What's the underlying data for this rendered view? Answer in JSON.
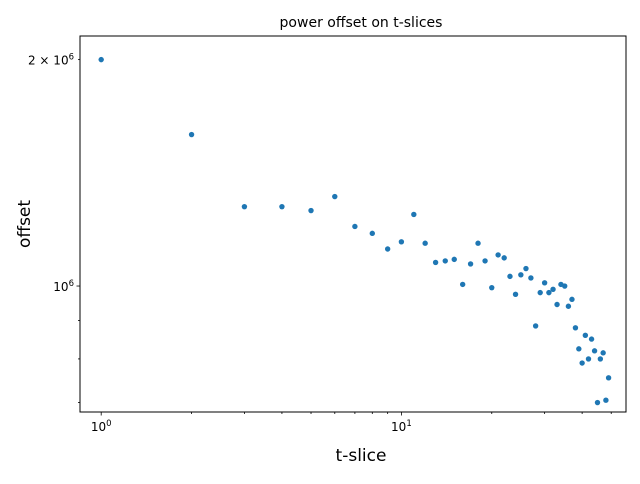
{
  "chart_data": {
    "type": "scatter",
    "title": "power offset on t-slices",
    "xlabel": "t-slice",
    "ylabel": "offset",
    "xscale": "log",
    "yscale": "log",
    "xlim": [
      0.85,
      56
    ],
    "ylim": [
      680000,
      2150000
    ],
    "grid": false,
    "x_tick_labels": [
      {
        "value": 1,
        "base": "10",
        "exp": "0"
      },
      {
        "value": 10,
        "base": "10",
        "exp": "1"
      }
    ],
    "y_tick_labels": [
      {
        "value": 1000000,
        "base": "10",
        "exp": "6",
        "prefix": ""
      },
      {
        "value": 2000000,
        "base": "10",
        "exp": "6",
        "prefix": "2 × "
      }
    ],
    "marker_color": "#1f77b4",
    "points": [
      [
        1,
        2000000
      ],
      [
        2,
        1590000
      ],
      [
        3,
        1275000
      ],
      [
        4,
        1275000
      ],
      [
        5,
        1260000
      ],
      [
        6,
        1315000
      ],
      [
        7,
        1200000
      ],
      [
        8,
        1175000
      ],
      [
        9,
        1120000
      ],
      [
        10,
        1145000
      ],
      [
        11,
        1245000
      ],
      [
        12,
        1140000
      ],
      [
        13,
        1075000
      ],
      [
        14,
        1080000
      ],
      [
        15,
        1085000
      ],
      [
        16,
        1005000
      ],
      [
        17,
        1070000
      ],
      [
        18,
        1140000
      ],
      [
        19,
        1080000
      ],
      [
        20,
        995000
      ],
      [
        21,
        1100000
      ],
      [
        22,
        1090000
      ],
      [
        23,
        1030000
      ],
      [
        24,
        975000
      ],
      [
        25,
        1035000
      ],
      [
        26,
        1055000
      ],
      [
        27,
        1025000
      ],
      [
        28,
        885000
      ],
      [
        29,
        980000
      ],
      [
        30,
        1010000
      ],
      [
        31,
        980000
      ],
      [
        32,
        990000
      ],
      [
        33,
        945000
      ],
      [
        34,
        1005000
      ],
      [
        35,
        1000000
      ],
      [
        36,
        940000
      ],
      [
        37,
        960000
      ],
      [
        38,
        880000
      ],
      [
        39,
        825000
      ],
      [
        40,
        790000
      ],
      [
        41,
        860000
      ],
      [
        42,
        800000
      ],
      [
        43,
        850000
      ],
      [
        44,
        820000
      ],
      [
        45,
        700000
      ],
      [
        46,
        800000
      ],
      [
        47,
        815000
      ],
      [
        48,
        705000
      ],
      [
        49,
        755000
      ]
    ]
  }
}
